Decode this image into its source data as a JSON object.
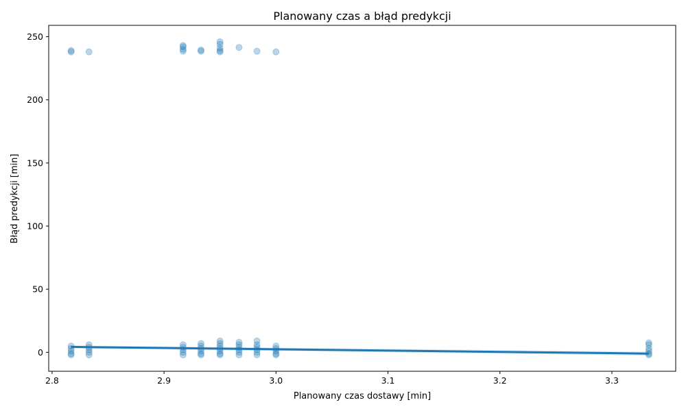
{
  "chart_data": {
    "type": "scatter",
    "title": "Planowany czas a błąd predykcji",
    "xlabel": "Planowany czas dostawy [min]",
    "ylabel": "Błąd predykcji [min]",
    "xlim": [
      2.797,
      3.357
    ],
    "ylim": [
      -15,
      259
    ],
    "x_ticks": [
      "2.8",
      "2.9",
      "3.0",
      "3.1",
      "3.2",
      "3.3"
    ],
    "y_ticks": [
      "0",
      "50",
      "100",
      "150",
      "200",
      "250"
    ],
    "grid": false,
    "color": "#1f77b4",
    "series": [
      {
        "kind": "scatter",
        "points": [
          [
            2.817,
            239
          ],
          [
            2.817,
            238
          ],
          [
            2.833,
            238
          ],
          [
            2.917,
            243
          ],
          [
            2.917,
            242
          ],
          [
            2.917,
            240
          ],
          [
            2.917,
            238.5
          ],
          [
            2.933,
            239.5
          ],
          [
            2.933,
            238.5
          ],
          [
            2.95,
            246
          ],
          [
            2.95,
            244
          ],
          [
            2.95,
            241
          ],
          [
            2.95,
            239
          ],
          [
            2.95,
            238
          ],
          [
            2.967,
            241.5
          ],
          [
            2.983,
            238.5
          ],
          [
            3.0,
            238
          ],
          [
            2.817,
            5
          ],
          [
            2.817,
            3
          ],
          [
            2.817,
            1
          ],
          [
            2.817,
            -1
          ],
          [
            2.817,
            -2
          ],
          [
            2.833,
            6
          ],
          [
            2.833,
            4
          ],
          [
            2.833,
            2
          ],
          [
            2.833,
            0
          ],
          [
            2.833,
            -2
          ],
          [
            2.917,
            6
          ],
          [
            2.917,
            4
          ],
          [
            2.917,
            2
          ],
          [
            2.917,
            0
          ],
          [
            2.917,
            -2
          ],
          [
            2.933,
            7
          ],
          [
            2.933,
            5
          ],
          [
            2.933,
            3
          ],
          [
            2.933,
            1
          ],
          [
            2.933,
            -1
          ],
          [
            2.933,
            -2
          ],
          [
            2.95,
            9
          ],
          [
            2.95,
            7
          ],
          [
            2.95,
            5
          ],
          [
            2.95,
            3
          ],
          [
            2.95,
            1
          ],
          [
            2.95,
            -1
          ],
          [
            2.95,
            -2
          ],
          [
            2.967,
            8
          ],
          [
            2.967,
            6
          ],
          [
            2.967,
            4
          ],
          [
            2.967,
            2
          ],
          [
            2.967,
            0
          ],
          [
            2.967,
            -2
          ],
          [
            2.983,
            9
          ],
          [
            2.983,
            6
          ],
          [
            2.983,
            4
          ],
          [
            2.983,
            2
          ],
          [
            2.983,
            0
          ],
          [
            2.983,
            -2
          ],
          [
            3.0,
            5
          ],
          [
            3.0,
            3
          ],
          [
            3.0,
            1
          ],
          [
            3.0,
            -1
          ],
          [
            3.0,
            -2
          ],
          [
            3.333,
            7.5
          ],
          [
            3.333,
            6
          ],
          [
            3.333,
            3
          ],
          [
            3.333,
            1
          ],
          [
            3.333,
            -1
          ],
          [
            3.333,
            -2
          ]
        ]
      },
      {
        "kind": "regression_line",
        "points": [
          [
            2.817,
            4.3
          ],
          [
            3.333,
            -1.0
          ]
        ]
      }
    ]
  }
}
